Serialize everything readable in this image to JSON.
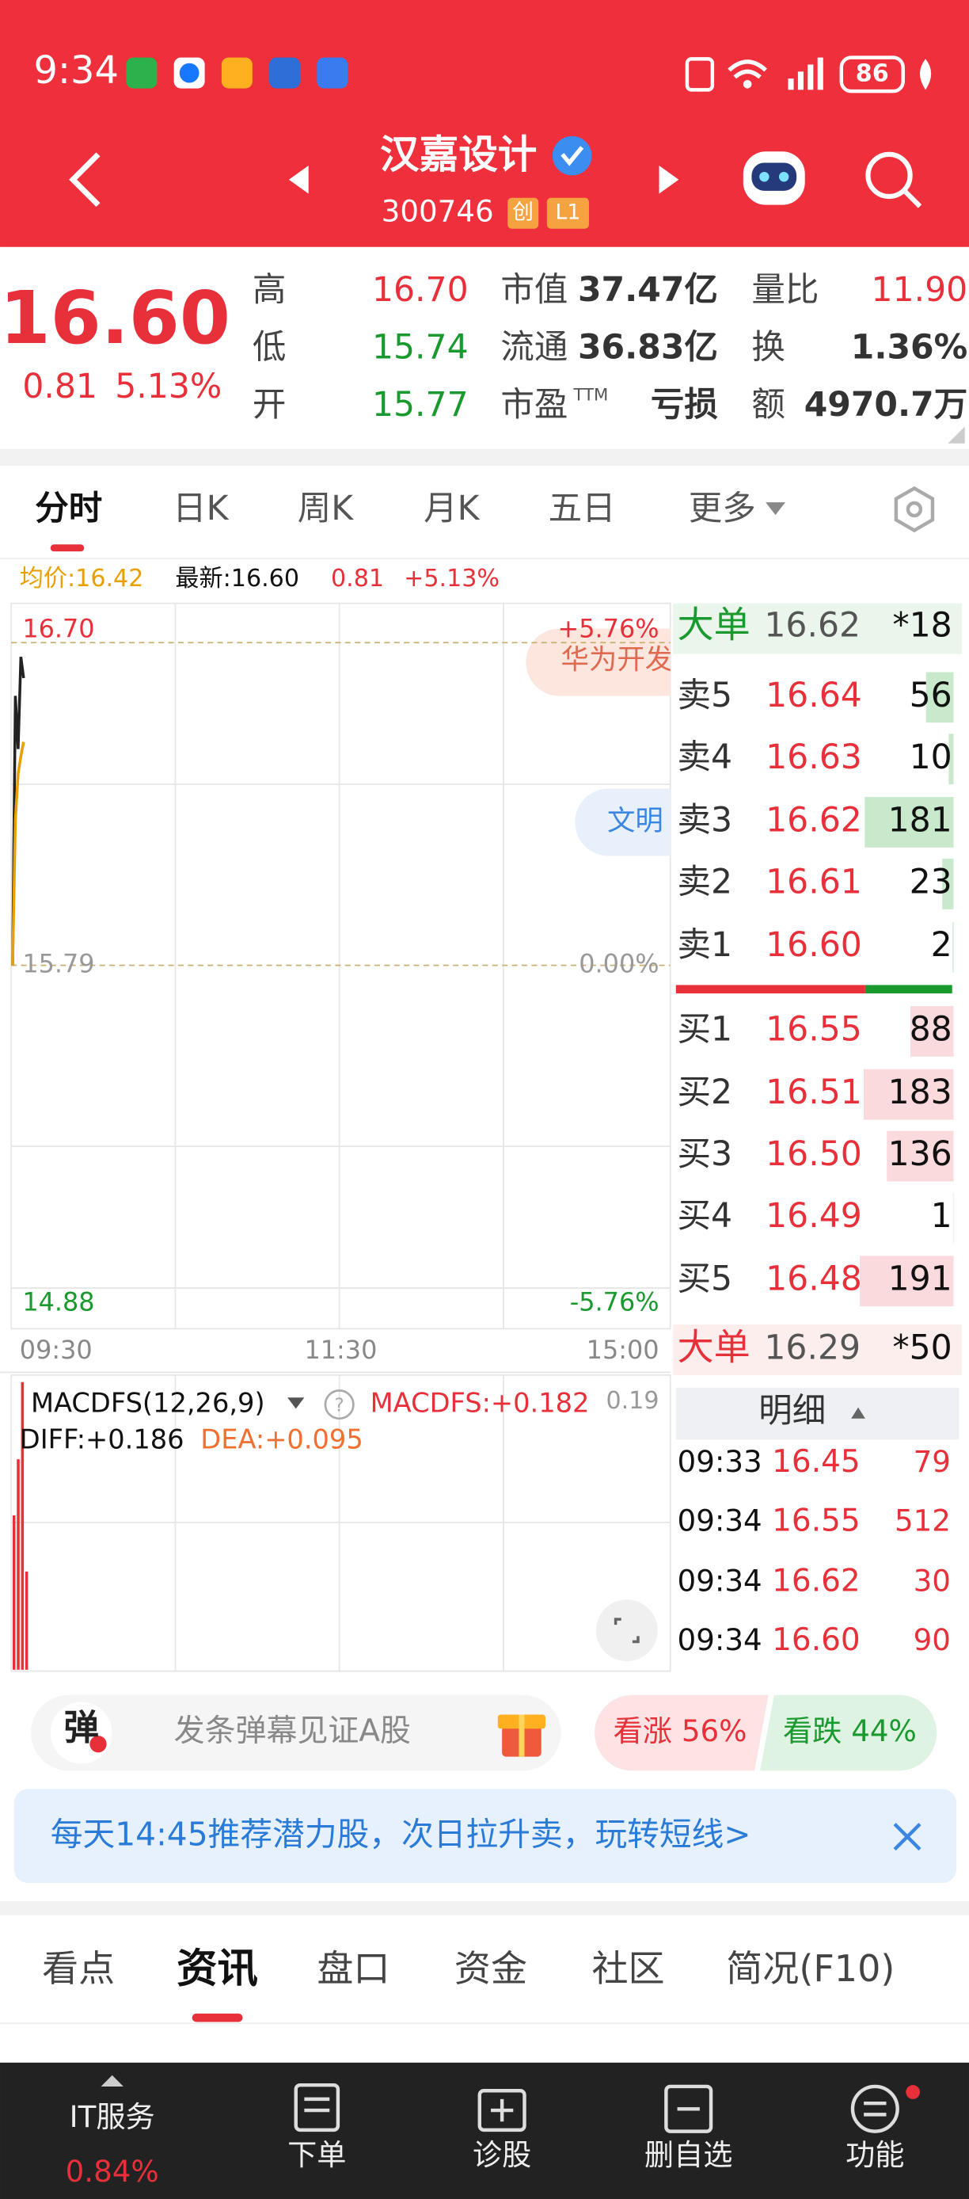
{
  "status": {
    "time": "9:34",
    "battery": "86"
  },
  "header": {
    "title": "汉嘉设计",
    "code": "300746",
    "badges": [
      "创",
      "L1"
    ]
  },
  "quote": {
    "price": "16.60",
    "change": "0.81",
    "change_pct": "5.13%",
    "stats": [
      {
        "label": "高",
        "value": "16.70"
      },
      {
        "label": "低",
        "value": "15.74"
      },
      {
        "label": "开",
        "value": "15.77"
      },
      {
        "label": "市值",
        "value": "37.47亿"
      },
      {
        "label": "流通",
        "value": "36.83亿"
      },
      {
        "label": "市盈",
        "sup": "TTM",
        "value": "亏损"
      },
      {
        "label": "量比",
        "value": "11.90"
      },
      {
        "label": "换",
        "value": "1.36%"
      },
      {
        "label": "额",
        "value": "4970.7万"
      }
    ]
  },
  "tabs": [
    "分时",
    "日K",
    "周K",
    "月K",
    "五日",
    "更多"
  ],
  "info": {
    "avg": "均价:16.42",
    "latest": "最新:16.60",
    "change": "0.81",
    "change_pct": "+5.13%"
  },
  "intraday": {
    "yticks": [
      {
        "value": 16.7,
        "label": "16.70"
      },
      15.79,
      14.88
    ],
    "pct_labels": [
      "+5.76%",
      "0.00%",
      "-5.76%"
    ],
    "ylim": [
      14.88,
      16.7
    ],
    "xticks": [
      "09:30",
      "11:30",
      "15:00"
    ],
    "x": [
      "09:30",
      "09:31",
      "09:32",
      "09:33",
      "09:34"
    ],
    "price": [
      15.79,
      16.55,
      16.4,
      16.66,
      16.6
    ],
    "avg": [
      15.79,
      16.2,
      16.33,
      16.38,
      16.42
    ],
    "overlays": [
      "华为开发",
      "文明"
    ]
  },
  "macd": {
    "name": "MACDFS(12,26,9)",
    "macd": "MACDFS:+0.182",
    "scale": "0.19",
    "diff": "DIFF:+0.186",
    "dea": "DEA:+0.095"
  },
  "orderbook": {
    "big_sell": {
      "label": "大单",
      "price": "16.62",
      "count": "*18"
    },
    "asks": [
      {
        "label": "卖5",
        "price": "16.64",
        "qty": 56
      },
      {
        "label": "卖4",
        "price": "16.63",
        "qty": 10
      },
      {
        "label": "卖3",
        "price": "16.62",
        "qty": 181
      },
      {
        "label": "卖2",
        "price": "16.61",
        "qty": 23
      },
      {
        "label": "卖1",
        "price": "16.60",
        "qty": 2
      }
    ],
    "bids": [
      {
        "label": "买1",
        "price": "16.55",
        "qty": 88
      },
      {
        "label": "买2",
        "price": "16.51",
        "qty": 183
      },
      {
        "label": "买3",
        "price": "16.50",
        "qty": 136
      },
      {
        "label": "买4",
        "price": "16.49",
        "qty": 1
      },
      {
        "label": "买5",
        "price": "16.48",
        "qty": 191
      }
    ],
    "big_buy": {
      "label": "大单",
      "price": "16.29",
      "count": "*50"
    },
    "detail_title": "明细",
    "trades": [
      {
        "time": "09:33",
        "price": "16.45",
        "vol": 79
      },
      {
        "time": "09:34",
        "price": "16.55",
        "vol": 512
      },
      {
        "time": "09:34",
        "price": "16.62",
        "vol": 30
      },
      {
        "time": "09:34",
        "price": "16.60",
        "vol": 90
      }
    ]
  },
  "danmu": {
    "icon": "弹",
    "placeholder": "发条弹幕见证A股",
    "bull": "看涨 56%",
    "bear": "看跌 44%"
  },
  "banner": "每天14:45推荐潜力股，次日拉升卖，玩转短线>",
  "section_tabs": [
    "看点",
    "资讯",
    "盘口",
    "资金",
    "社区",
    "简况(F10)"
  ],
  "nav": {
    "sector": "IT服务",
    "sector_pct": "0.84%",
    "items": [
      "下单",
      "诊股",
      "删自选",
      "功能"
    ]
  }
}
